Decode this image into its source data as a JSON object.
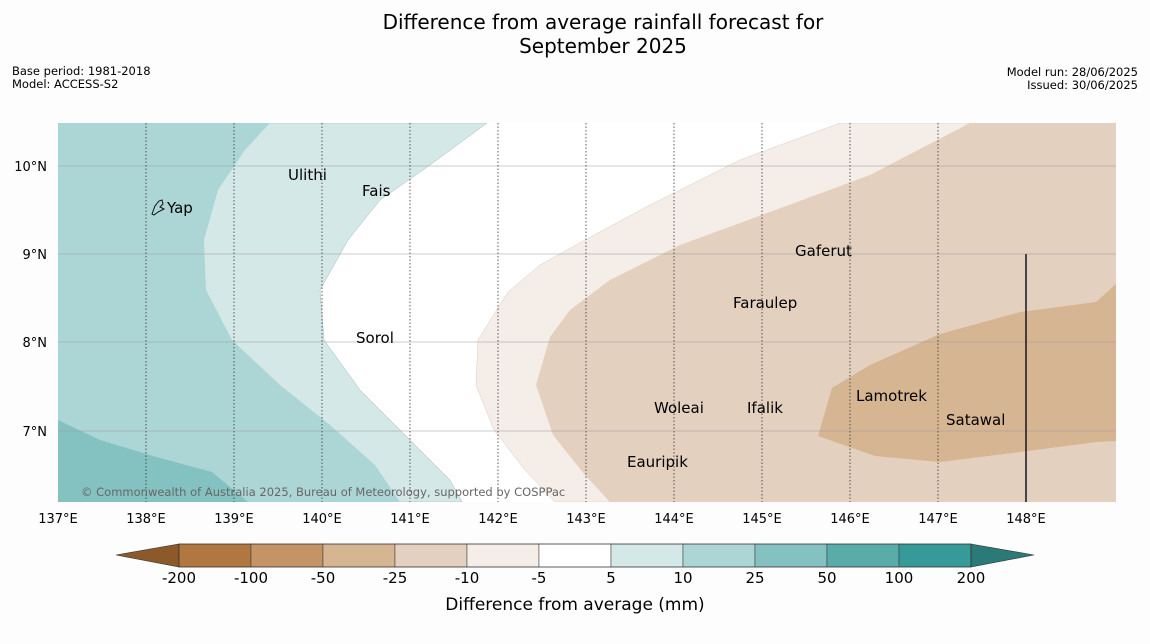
{
  "title_line1": "Difference from average rainfall forecast for",
  "title_line2": "September 2025",
  "meta_left": [
    "Base period: 1981-2018",
    "Model: ACCESS-S2"
  ],
  "meta_right": [
    "Model run: 28/06/2025",
    "Issued: 30/06/2025"
  ],
  "credit": "© Commonwealth of Australia 2025, Bureau of Meteorology, supported by COSPPac",
  "lon_ticks": [
    "137°E",
    "138°E",
    "139°E",
    "140°E",
    "141°E",
    "142°E",
    "143°E",
    "144°E",
    "145°E",
    "146°E",
    "147°E",
    "148°E"
  ],
  "lat_ticks": [
    "10°N",
    "9°N",
    "8°N",
    "7°N"
  ],
  "places": [
    {
      "name": "Yap"
    },
    {
      "name": "Ulithi"
    },
    {
      "name": "Fais"
    },
    {
      "name": "Gaferut"
    },
    {
      "name": "Faraulep"
    },
    {
      "name": "Sorol"
    },
    {
      "name": "Woleai"
    },
    {
      "name": "Ifalik"
    },
    {
      "name": "Lamotrek"
    },
    {
      "name": "Satawal"
    },
    {
      "name": "Eauripik"
    }
  ],
  "colorbar": {
    "labels": [
      "-200",
      "-100",
      "-50",
      "-25",
      "-10",
      "-5",
      "5",
      "10",
      "25",
      "50",
      "100",
      "200"
    ],
    "colors": [
      "#8c5a2a",
      "#b07840",
      "#c49466",
      "#d6b592",
      "#e4d0be",
      "#f5ede8",
      "#ffffff",
      "#d5e8e8",
      "#acd6d6",
      "#84c2c1",
      "#5aacab",
      "#369a98",
      "#2a7a78"
    ],
    "title": "Difference from average (mm)"
  }
}
